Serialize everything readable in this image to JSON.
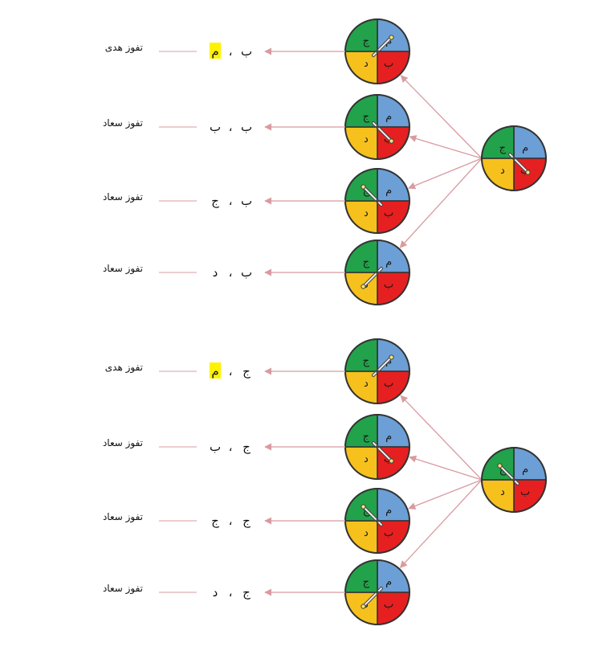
{
  "spinner": {
    "sectors": {
      "top_right": {
        "label": "م",
        "color": "#6b9fd6"
      },
      "top_left": {
        "label": "ج",
        "color": "#22a24a"
      },
      "bottom_left": {
        "label": "د",
        "color": "#f6c11d"
      },
      "bottom_right": {
        "label": "ب",
        "color": "#e62020"
      }
    },
    "outline_color": "#333333",
    "arrow_color": "#d89ba0",
    "highlight_color": "#fff200"
  },
  "groups": [
    {
      "first_outcome": "ب",
      "first_pointer": "bottom_right",
      "branches": [
        {
          "pointer": "top_right",
          "first": "ب",
          "second": "م",
          "second_highlight": true,
          "result": "تفوز هدى"
        },
        {
          "pointer": "bottom_right",
          "first": "ب",
          "second": "ب",
          "second_highlight": false,
          "result": "تفوز سعاد"
        },
        {
          "pointer": "top_left",
          "first": "ب",
          "second": "ج",
          "second_highlight": false,
          "result": "تفوز سعاد"
        },
        {
          "pointer": "bottom_left",
          "first": "ب",
          "second": "د",
          "second_highlight": false,
          "result": "تفوز سعاد"
        }
      ]
    },
    {
      "first_outcome": "ج",
      "first_pointer": "top_left",
      "branches": [
        {
          "pointer": "top_right",
          "first": "ج",
          "second": "م",
          "second_highlight": true,
          "result": "تفوز هدى"
        },
        {
          "pointer": "bottom_right",
          "first": "ج",
          "second": "ب",
          "second_highlight": false,
          "result": "تفوز سعاد"
        },
        {
          "pointer": "top_left",
          "first": "ج",
          "second": "ج",
          "second_highlight": false,
          "result": "تفوز سعاد"
        },
        {
          "pointer": "bottom_left",
          "first": "ج",
          "second": "د",
          "second_highlight": false,
          "result": "تفوز سعاد"
        }
      ]
    }
  ]
}
